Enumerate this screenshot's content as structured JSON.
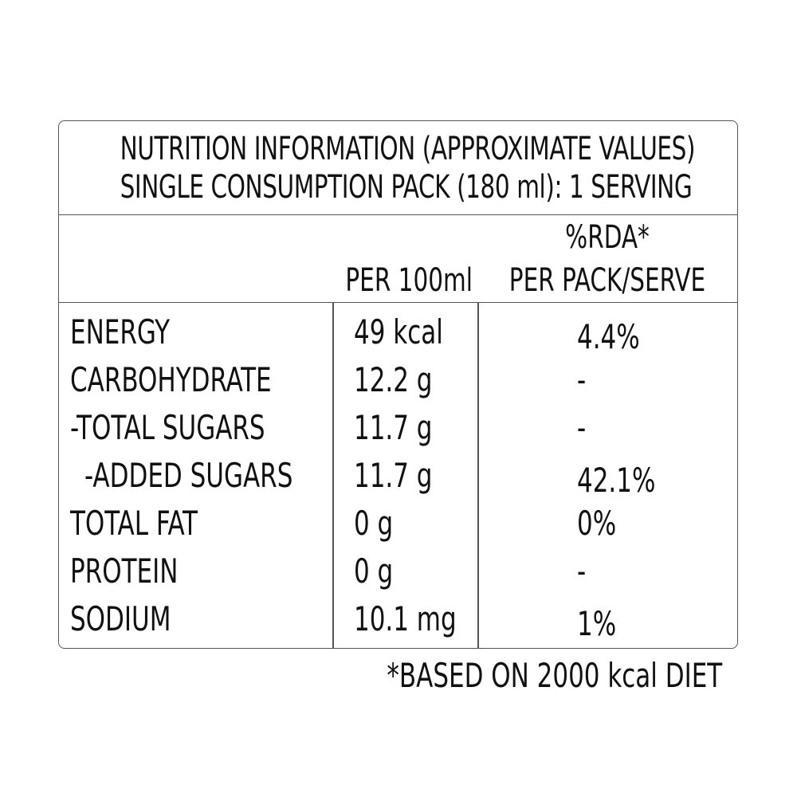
{
  "title": {
    "line1": "NUTRITION INFORMATION (APPROXIMATE VALUES)",
    "line2": "SINGLE CONSUMPTION PACK (180 ml): 1 SERVING"
  },
  "headers": {
    "per_100ml": "PER 100ml",
    "rda": "%RDA*",
    "per_pack": "PER PACK/SERVE"
  },
  "rows": [
    {
      "name": "ENERGY",
      "per_100ml": "49 kcal",
      "rda": "4.4%"
    },
    {
      "name": "CARBOHYDRATE",
      "per_100ml": "12.2 g",
      "rda": "-"
    },
    {
      "name": "-TOTAL SUGARS",
      "per_100ml": "11.7 g",
      "rda": "-"
    },
    {
      "name": "-ADDED SUGARS",
      "per_100ml": "11.7 g",
      "rda": "42.1%"
    },
    {
      "name": "TOTAL FAT",
      "per_100ml": "0 g",
      "rda": "0%"
    },
    {
      "name": "PROTEIN",
      "per_100ml": "0 g",
      "rda": "-"
    },
    {
      "name": "SODIUM",
      "per_100ml": "10.1 mg",
      "rda": "1%"
    }
  ],
  "footnote": "*BASED ON 2000 kcal DIET",
  "colors": {
    "text": "#111111",
    "border": "#555555",
    "background": "#ffffff"
  }
}
